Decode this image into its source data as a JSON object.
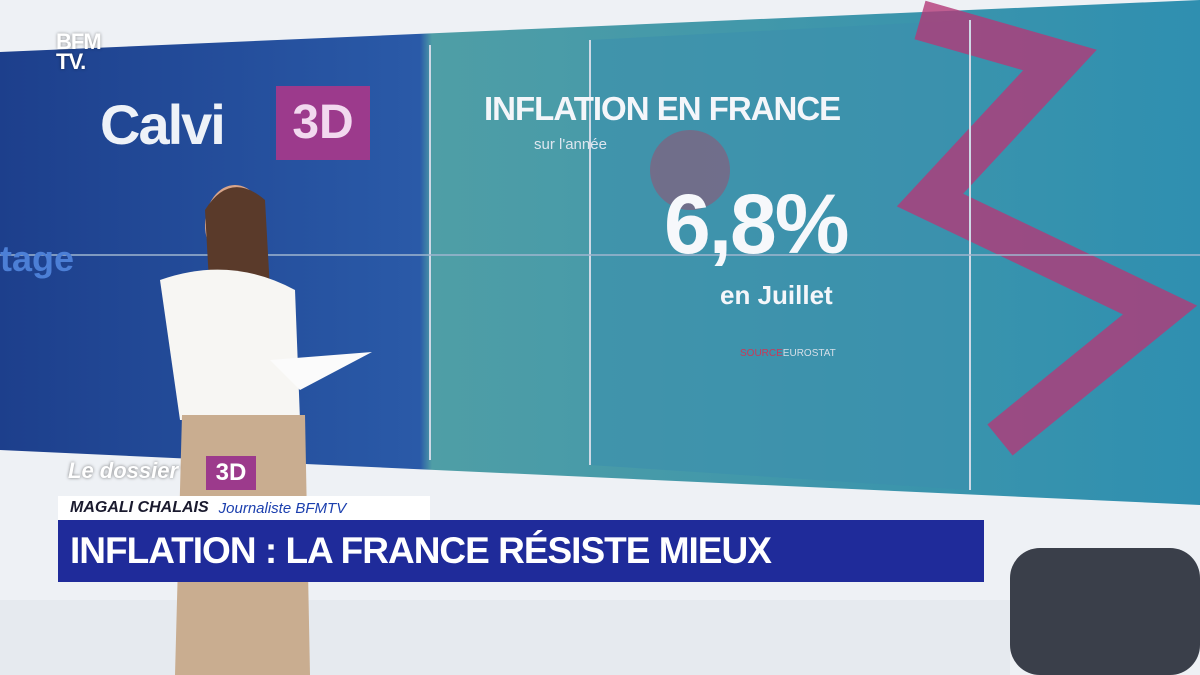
{
  "logo": {
    "line1": "BFM",
    "line2": "TV."
  },
  "studio": {
    "show": "Calvi",
    "badge": "3D",
    "fragment": "tage"
  },
  "screen": {
    "title": "INFLATION EN FRANCE",
    "subtitle": "sur l'année",
    "value": "6,8%",
    "period": "en Juillet",
    "source_prefix": "SOURCE",
    "source": "EUROSTAT"
  },
  "lower_third": {
    "segment": "Le dossier",
    "segment_badge": "3D",
    "name": "MAGALI CHALAIS",
    "role": "Journaliste BFMTV",
    "headline": "INFLATION : LA FRANCE RÉSISTE MIEUX"
  }
}
